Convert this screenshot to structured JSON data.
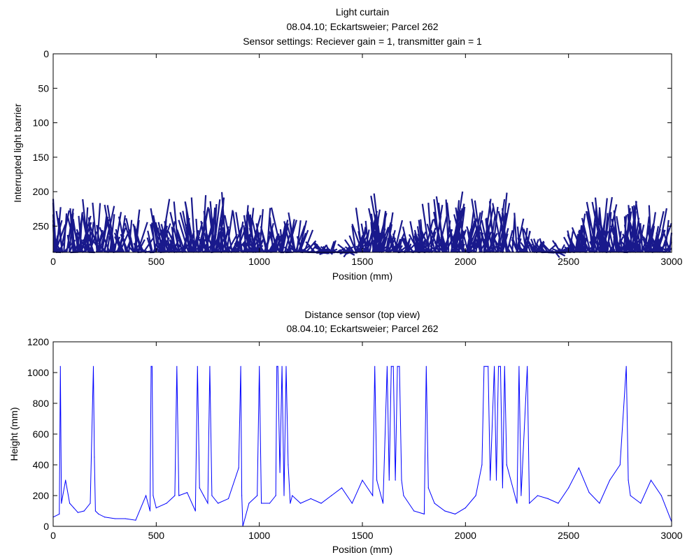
{
  "colors": {
    "series": "#000080",
    "line": "#0000ff",
    "axis": "#000000",
    "background": "#ffffff"
  },
  "chart_data": [
    {
      "type": "scatter",
      "title_lines": [
        "Light curtain",
        "08.04.10; Eckartsweier; Parcel 262",
        "Sensor settings: Reciever gain = 1, transmitter gain = 1"
      ],
      "xlabel": "Position (mm)",
      "ylabel": "Interrupted light barrier",
      "xlim": [
        0,
        3000
      ],
      "ylim": [
        0,
        288
      ],
      "y_reversed": true,
      "grid": false,
      "xticks": [
        0,
        500,
        1000,
        1500,
        2000,
        2500,
        3000
      ],
      "yticks": [
        0,
        50,
        100,
        150,
        200,
        250
      ],
      "series_color": "#000080",
      "canopy_top_profile": {
        "x": [
          0,
          50,
          100,
          150,
          200,
          250,
          300,
          350,
          400,
          450,
          500,
          550,
          600,
          650,
          700,
          750,
          800,
          850,
          900,
          950,
          1000,
          1050,
          1100,
          1150,
          1200,
          1250,
          1300,
          1350,
          1400,
          1450,
          1500,
          1550,
          1600,
          1650,
          1700,
          1750,
          1800,
          1850,
          1900,
          1950,
          2000,
          2050,
          2100,
          2150,
          2200,
          2250,
          2300,
          2350,
          2400,
          2450,
          2500,
          2550,
          2600,
          2650,
          2700,
          2750,
          2800,
          2850,
          2900,
          2950,
          3000
        ],
        "y": [
          195,
          188,
          200,
          205,
          198,
          208,
          205,
          225,
          205,
          220,
          205,
          210,
          205,
          210,
          180,
          200,
          192,
          198,
          205,
          210,
          210,
          212,
          205,
          212,
          225,
          260,
          268,
          262,
          270,
          265,
          200,
          188,
          200,
          230,
          250,
          235,
          210,
          200,
          185,
          180,
          210,
          215,
          180,
          195,
          200,
          220,
          240,
          250,
          265,
          270,
          250,
          225,
          200,
          195,
          210,
          215,
          200,
          205,
          195,
          225,
          250
        ]
      }
    },
    {
      "type": "line",
      "title_lines": [
        "Distance sensor (top view)",
        "08.04.10; Eckartsweier; Parcel 262"
      ],
      "xlabel": "Position (mm)",
      "ylabel": "Height (mm)",
      "xlim": [
        0,
        3000
      ],
      "ylim": [
        0,
        1200
      ],
      "grid": false,
      "xticks": [
        0,
        500,
        1000,
        1500,
        2000,
        2500,
        3000
      ],
      "yticks": [
        0,
        200,
        400,
        600,
        800,
        1000,
        1200
      ],
      "series": [
        {
          "color": "#0000ff",
          "x": [
            0,
            30,
            35,
            40,
            60,
            80,
            100,
            120,
            150,
            180,
            195,
            200,
            205,
            220,
            250,
            300,
            350,
            400,
            450,
            470,
            475,
            480,
            485,
            500,
            550,
            590,
            600,
            610,
            650,
            690,
            700,
            710,
            730,
            750,
            760,
            770,
            800,
            850,
            900,
            910,
            915,
            920,
            950,
            990,
            1000,
            1010,
            1050,
            1080,
            1085,
            1090,
            1100,
            1110,
            1120,
            1130,
            1140,
            1150,
            1160,
            1200,
            1250,
            1300,
            1350,
            1400,
            1450,
            1500,
            1550,
            1560,
            1570,
            1600,
            1620,
            1630,
            1640,
            1650,
            1660,
            1670,
            1680,
            1690,
            1700,
            1750,
            1800,
            1810,
            1820,
            1850,
            1900,
            1950,
            2000,
            2050,
            2080,
            2090,
            2100,
            2110,
            2120,
            2140,
            2150,
            2160,
            2170,
            2180,
            2190,
            2200,
            2250,
            2260,
            2270,
            2300,
            2310,
            2350,
            2400,
            2450,
            2500,
            2550,
            2600,
            2650,
            2700,
            2750,
            2780,
            2790,
            2800,
            2850,
            2900,
            2950,
            3000
          ],
          "y": [
            60,
            80,
            1040,
            150,
            300,
            150,
            120,
            90,
            100,
            150,
            1040,
            450,
            100,
            80,
            60,
            50,
            50,
            40,
            200,
            100,
            1040,
            1040,
            200,
            120,
            150,
            200,
            1040,
            200,
            220,
            100,
            1040,
            250,
            200,
            150,
            1040,
            200,
            150,
            180,
            380,
            1040,
            200,
            0,
            150,
            200,
            1040,
            150,
            150,
            200,
            1040,
            1040,
            350,
            1040,
            200,
            1040,
            400,
            150,
            200,
            150,
            180,
            150,
            200,
            250,
            150,
            300,
            200,
            1040,
            300,
            150,
            1040,
            300,
            1040,
            1040,
            300,
            1040,
            1040,
            300,
            200,
            100,
            80,
            1040,
            250,
            150,
            100,
            80,
            120,
            200,
            400,
            1040,
            1040,
            1040,
            300,
            1040,
            300,
            1040,
            1040,
            250,
            1040,
            400,
            150,
            1040,
            200,
            1040,
            150,
            200,
            180,
            150,
            250,
            380,
            220,
            150,
            300,
            400,
            1040,
            300,
            200,
            150,
            300,
            200,
            30
          ]
        }
      ]
    }
  ]
}
